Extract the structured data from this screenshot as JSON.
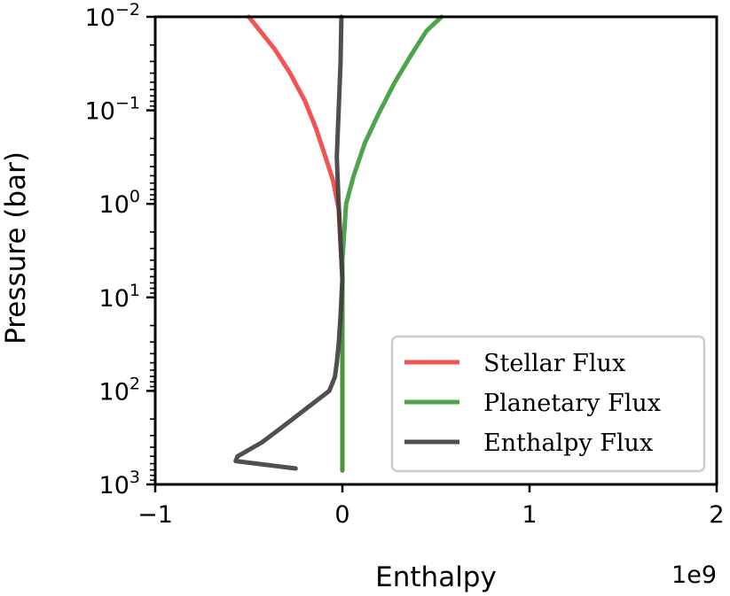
{
  "chart_data": {
    "type": "line",
    "xlabel": "Enthalpy",
    "ylabel": "Pressure (bar)",
    "x_offset_label": "1e9",
    "xlim": [
      -1.0,
      2.0
    ],
    "ylim_log10": [
      3,
      -2
    ],
    "y_scale": "log",
    "y_inverted": true,
    "xticks": [
      -1,
      0,
      1,
      2
    ],
    "xtick_labels": [
      "−1",
      "0",
      "1",
      "2"
    ],
    "yticks_exp": [
      -2,
      -1,
      0,
      1,
      2,
      3
    ],
    "ytick_labels": [
      {
        "base": "10",
        "exp": "−2"
      },
      {
        "base": "10",
        "exp": "−1"
      },
      {
        "base": "10",
        "exp": "0"
      },
      {
        "base": "10",
        "exp": "1"
      },
      {
        "base": "10",
        "exp": "2"
      },
      {
        "base": "10",
        "exp": "3"
      }
    ],
    "grid": false,
    "legend_position": "lower-right",
    "series": [
      {
        "name": "Stellar Flux",
        "color": "#f14040",
        "x": [
          -0.5,
          -0.44,
          -0.36,
          -0.28,
          -0.2,
          -0.14,
          -0.09,
          -0.05,
          -0.02,
          0.0,
          0.0
        ],
        "log10_pressure": [
          -2.0,
          -1.85,
          -1.65,
          -1.4,
          -1.1,
          -0.8,
          -0.5,
          -0.25,
          0.05,
          0.8,
          2.85
        ]
      },
      {
        "name": "Planetary Flux",
        "color": "#3a9a3a",
        "x": [
          0.53,
          0.45,
          0.37,
          0.28,
          0.19,
          0.12,
          0.06,
          0.02,
          0.0,
          0.0
        ],
        "log10_pressure": [
          -2.0,
          -1.85,
          -1.6,
          -1.3,
          -0.95,
          -0.65,
          -0.3,
          0.0,
          0.6,
          2.85
        ]
      },
      {
        "name": "Enthalpy Flux",
        "color": "#3c3c3c",
        "x": [
          -0.005,
          -0.01,
          -0.02,
          -0.03,
          -0.02,
          -0.01,
          0.0,
          -0.01,
          -0.02,
          -0.03,
          -0.04,
          -0.07,
          -0.2,
          -0.33,
          -0.43,
          -0.56,
          -0.57,
          -0.25
        ],
        "log10_pressure": [
          -2.0,
          -1.5,
          -1.0,
          -0.5,
          0.0,
          0.4,
          0.8,
          1.2,
          1.5,
          1.7,
          1.85,
          2.0,
          2.2,
          2.4,
          2.55,
          2.7,
          2.75,
          2.83
        ]
      }
    ]
  }
}
